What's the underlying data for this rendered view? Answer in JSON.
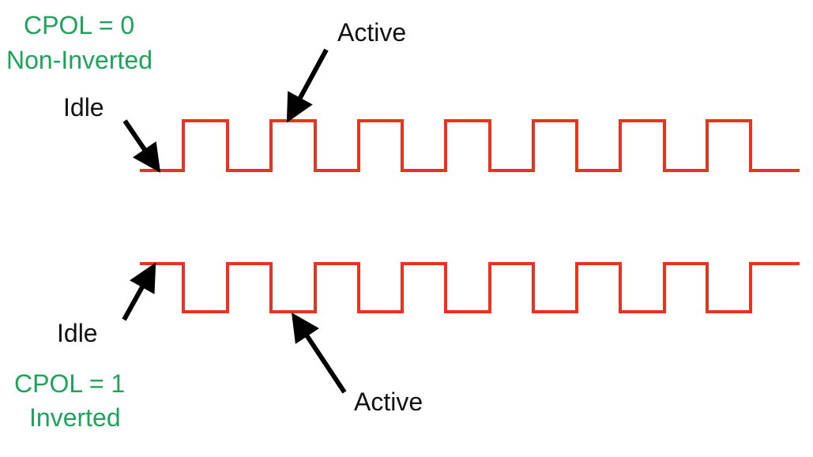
{
  "diagram": {
    "top": {
      "title_line1": "CPOL = 0",
      "title_line2": "Non-Inverted",
      "idle_label": "Idle",
      "active_label": "Active"
    },
    "bottom": {
      "title_line1": "CPOL = 1",
      "title_line2": "Inverted",
      "idle_label": "Idle",
      "active_label": "Active"
    },
    "colors": {
      "signal": "#e8331f",
      "title_text": "#1ea35a",
      "label_text": "#111111",
      "arrow": "#000000"
    },
    "pulse_count": 7
  }
}
